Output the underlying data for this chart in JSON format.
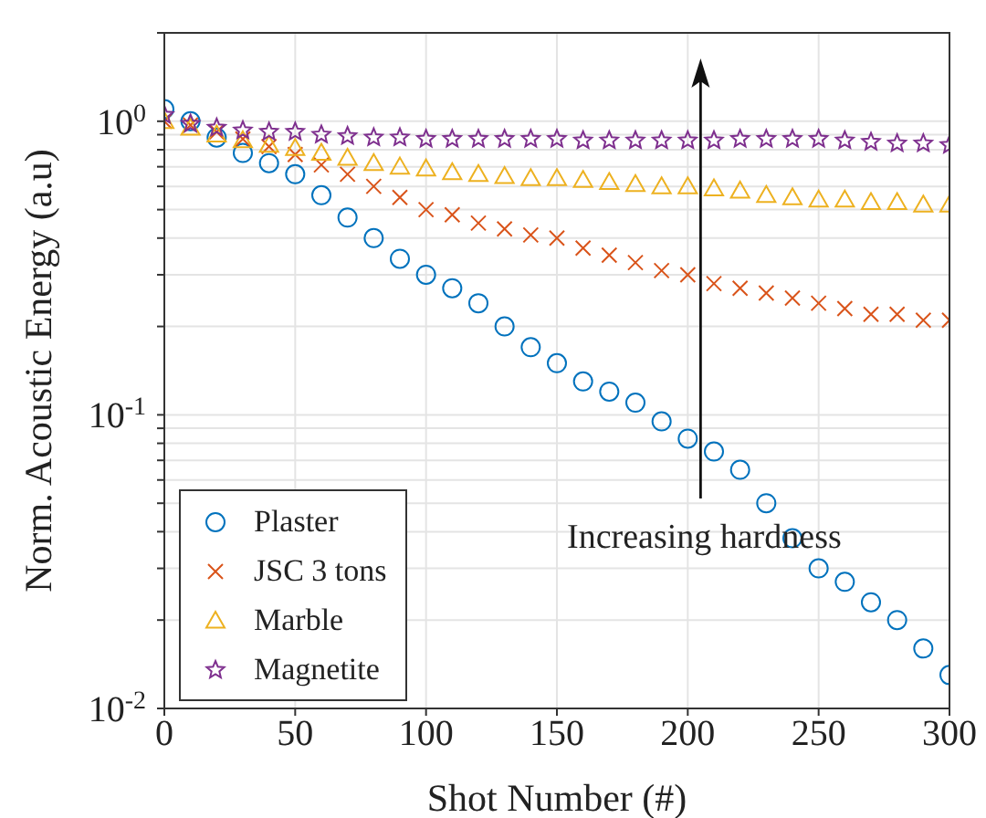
{
  "chart_data": {
    "type": "scatter",
    "xlabel": "Shot Number (#)",
    "ylabel": "Norm. Acoustic Energy (a.u)",
    "log": "y",
    "grid": true,
    "legend": "bottom left",
    "x": [
      0,
      10,
      20,
      30,
      40,
      50,
      60,
      70,
      80,
      90,
      100,
      110,
      120,
      130,
      140,
      150,
      160,
      170,
      180,
      190,
      200,
      210,
      220,
      230,
      240,
      250,
      260,
      270,
      280,
      290,
      300
    ],
    "xlim": [
      0,
      300
    ],
    "xticks": [
      0,
      50,
      100,
      150,
      200,
      250,
      300
    ],
    "ylim": [
      0.01,
      2
    ],
    "yticks": [
      {
        "value": 0.01,
        "label": "10$^{-2}$"
      },
      {
        "value": 0.02,
        "label": null
      },
      {
        "value": 0.03,
        "label": null
      },
      {
        "value": 0.04,
        "label": null
      },
      {
        "value": 0.05,
        "label": null
      },
      {
        "value": 0.06,
        "label": null
      },
      {
        "value": 0.07,
        "label": null
      },
      {
        "value": 0.08,
        "label": null
      },
      {
        "value": 0.09,
        "label": null
      },
      {
        "value": 0.1,
        "label": "10$^{-1}$"
      },
      {
        "value": 0.2,
        "label": null
      },
      {
        "value": 0.3,
        "label": null
      },
      {
        "value": 0.4,
        "label": null
      },
      {
        "value": 0.5,
        "label": null
      },
      {
        "value": 0.6,
        "label": null
      },
      {
        "value": 0.7,
        "label": null
      },
      {
        "value": 0.8,
        "label": null
      },
      {
        "value": 0.9,
        "label": null
      },
      {
        "value": 1,
        "label": "10$^{0}$"
      },
      {
        "value": 2,
        "label": null
      }
    ],
    "series": [
      {
        "name": "Plaster",
        "color": "#0072bd",
        "marker": "circle",
        "values": [
          1.1,
          1.0,
          0.88,
          0.78,
          0.72,
          0.66,
          0.56,
          0.47,
          0.4,
          0.34,
          0.3,
          0.27,
          0.24,
          0.2,
          0.17,
          0.15,
          0.13,
          0.12,
          0.11,
          0.095,
          0.083,
          0.075,
          0.065,
          0.05,
          0.038,
          0.03,
          0.027,
          0.023,
          0.02,
          0.016,
          0.013
        ]
      },
      {
        "name": "JSC 3 tons",
        "color": "#d95319",
        "marker": "cross",
        "values": [
          1.0,
          0.97,
          0.92,
          0.87,
          0.82,
          0.77,
          0.71,
          0.66,
          0.6,
          0.55,
          0.5,
          0.48,
          0.45,
          0.43,
          0.41,
          0.4,
          0.37,
          0.35,
          0.33,
          0.31,
          0.3,
          0.28,
          0.27,
          0.26,
          0.25,
          0.24,
          0.23,
          0.22,
          0.22,
          0.21,
          0.21
        ]
      },
      {
        "name": "Marble",
        "color": "#edb120",
        "marker": "triangle",
        "values": [
          1.0,
          0.95,
          0.9,
          0.86,
          0.83,
          0.81,
          0.78,
          0.75,
          0.72,
          0.7,
          0.69,
          0.67,
          0.66,
          0.65,
          0.64,
          0.64,
          0.63,
          0.62,
          0.61,
          0.6,
          0.6,
          0.59,
          0.58,
          0.56,
          0.55,
          0.54,
          0.54,
          0.53,
          0.53,
          0.52,
          0.52
        ]
      },
      {
        "name": "Magnetite",
        "color": "#7e2f8e",
        "marker": "star",
        "values": [
          1.05,
          0.98,
          0.95,
          0.93,
          0.92,
          0.92,
          0.9,
          0.89,
          0.88,
          0.88,
          0.87,
          0.87,
          0.87,
          0.87,
          0.87,
          0.87,
          0.86,
          0.86,
          0.86,
          0.86,
          0.86,
          0.86,
          0.87,
          0.87,
          0.87,
          0.87,
          0.86,
          0.85,
          0.84,
          0.84,
          0.83
        ]
      }
    ],
    "annotations": [
      "Increasing hardness"
    ]
  }
}
